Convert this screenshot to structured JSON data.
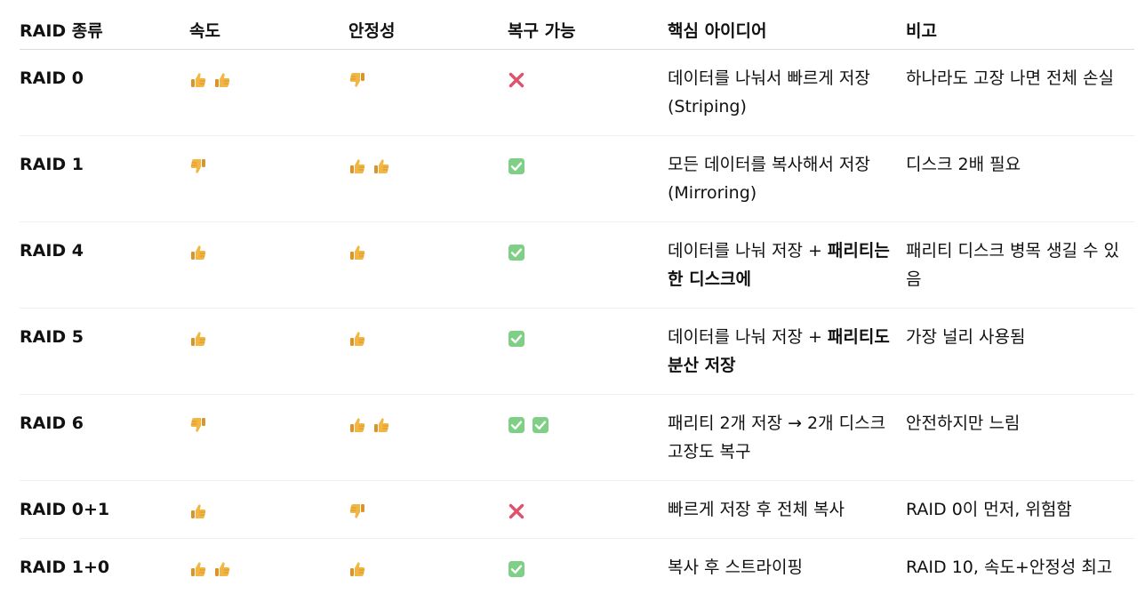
{
  "headers": [
    "RAID 종류",
    "속도",
    "안정성",
    "복구 가능",
    "핵심 아이디어",
    "비고"
  ],
  "rows": [
    {
      "raid": "RAID 0",
      "speed": [
        "thumbs-up",
        "thumbs-up"
      ],
      "stability": [
        "thumbs-down"
      ],
      "recovery": [
        "cross-mark"
      ],
      "idea": "데이터를 나눠서 빠르게 저장 (Striping)",
      "idea_bold": "",
      "note": "하나라도 고장 나면 전체 손실"
    },
    {
      "raid": "RAID 1",
      "speed": [
        "thumbs-down"
      ],
      "stability": [
        "thumbs-up",
        "thumbs-up"
      ],
      "recovery": [
        "check-mark"
      ],
      "idea": "모든 데이터를 복사해서 저장 (Mirroring)",
      "idea_bold": "",
      "note": "디스크 2배 필요"
    },
    {
      "raid": "RAID 4",
      "speed": [
        "thumbs-up"
      ],
      "stability": [
        "thumbs-up"
      ],
      "recovery": [
        "check-mark"
      ],
      "idea": "데이터를 나눠 저장 + ",
      "idea_bold": "패리티는 한 디스크에",
      "note": "패리티 디스크 병목 생길 수 있음"
    },
    {
      "raid": "RAID 5",
      "speed": [
        "thumbs-up"
      ],
      "stability": [
        "thumbs-up"
      ],
      "recovery": [
        "check-mark"
      ],
      "idea": "데이터를 나눠 저장 + ",
      "idea_bold": "패리티도 분산 저장",
      "note": "가장 널리 사용됨"
    },
    {
      "raid": "RAID 6",
      "speed": [
        "thumbs-down"
      ],
      "stability": [
        "thumbs-up",
        "thumbs-up"
      ],
      "recovery": [
        "check-mark",
        "check-mark"
      ],
      "idea": "패리티 2개 저장 → 2개 디스크 고장도 복구",
      "idea_bold": "",
      "note": "안전하지만 느림"
    },
    {
      "raid": "RAID 0+1",
      "speed": [
        "thumbs-up"
      ],
      "stability": [
        "thumbs-down"
      ],
      "recovery": [
        "cross-mark"
      ],
      "idea": "빠르게 저장 후 전체 복사",
      "idea_bold": "",
      "note": "RAID 0이 먼저, 위험함"
    },
    {
      "raid": "RAID 1+0",
      "speed": [
        "thumbs-up",
        "thumbs-up"
      ],
      "stability": [
        "thumbs-up"
      ],
      "recovery": [
        "check-mark"
      ],
      "idea": "복사 후 스트라이핑",
      "idea_bold": "",
      "note": "RAID 10, 속도+안정성 최고"
    }
  ],
  "colors": {
    "thumb": "#f2b643",
    "thumb_shade": "#d9952b",
    "cross": "#e0526b",
    "check_bg": "#7fcf86",
    "header_border": "#dcdcdc",
    "row_border": "#efefef"
  }
}
